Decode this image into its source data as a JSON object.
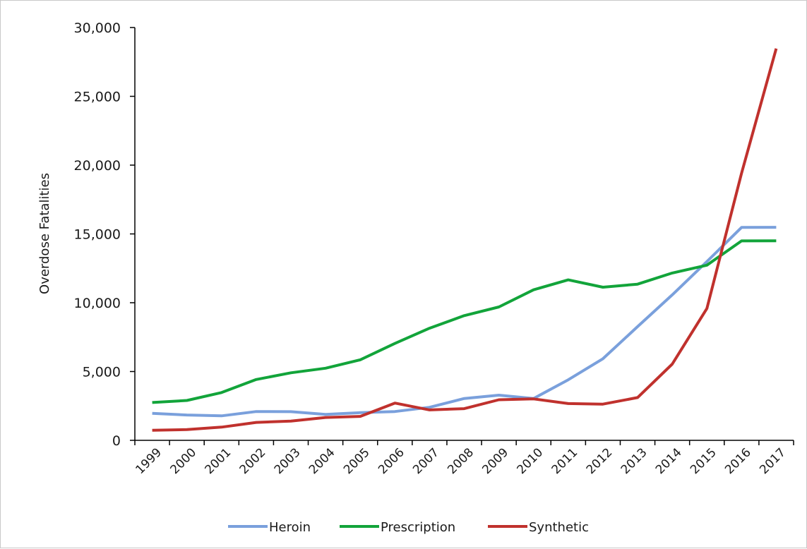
{
  "chart_data": {
    "type": "line",
    "title": "",
    "xlabel": "",
    "ylabel": "Overdose Fatalities",
    "categories": [
      "1999",
      "2000",
      "2001",
      "2002",
      "2003",
      "2004",
      "2005",
      "2006",
      "2007",
      "2008",
      "2009",
      "2010",
      "2011",
      "2012",
      "2013",
      "2014",
      "2015",
      "2016",
      "2017"
    ],
    "yticks": [
      "0",
      "5,000",
      "10,000",
      "15,000",
      "20,000",
      "25,000",
      "30,000"
    ],
    "ylim": [
      0,
      30000
    ],
    "grid": false,
    "legend_position": "bottom",
    "series": [
      {
        "name": "Heroin",
        "color": "#7aa0dc",
        "values": [
          1960,
          1840,
          1780,
          2090,
          2080,
          1880,
          2010,
          2090,
          2400,
          3040,
          3280,
          3040,
          4400,
          5930,
          8260,
          10570,
          12990,
          15470,
          15480
        ]
      },
      {
        "name": "Prescription",
        "color": "#12a43a",
        "values": [
          2750,
          2900,
          3470,
          4420,
          4910,
          5240,
          5850,
          7040,
          8150,
          9060,
          9690,
          10940,
          11660,
          11130,
          11350,
          12160,
          12730,
          14490,
          14500
        ]
      },
      {
        "name": "Synthetic",
        "color": "#c0312d",
        "values": [
          730,
          780,
          960,
          1300,
          1400,
          1660,
          1740,
          2710,
          2210,
          2300,
          2950,
          3010,
          2670,
          2630,
          3110,
          5540,
          9580,
          19410,
          28470
        ]
      }
    ]
  }
}
